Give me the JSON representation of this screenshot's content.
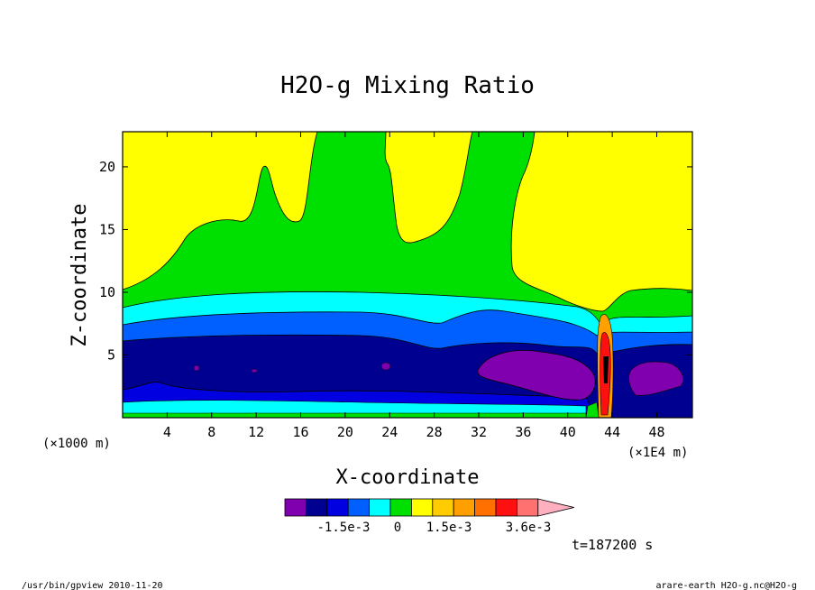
{
  "chart_data": {
    "type": "heatmap",
    "title": "H2O-g Mixing Ratio",
    "xlabel": "X-coordinate",
    "ylabel": "Z-coordinate",
    "x_units": "(×1000 m)",
    "x_scale_note": "(×1E4 m)",
    "xlim": [
      0,
      51.2
    ],
    "ylim": [
      0,
      22.8
    ],
    "x_ticks": [
      4,
      8,
      12,
      16,
      20,
      24,
      28,
      32,
      36,
      40,
      44,
      48
    ],
    "y_ticks": [
      5,
      10,
      15,
      20
    ],
    "colorbar": {
      "colors": [
        "#8000b0",
        "#000090",
        "#0000e0",
        "#0060ff",
        "#00ffff",
        "#00e000",
        "#ffff00",
        "#ffcc00",
        "#ffa000",
        "#ff7000",
        "#ff1010",
        "#ff7070",
        "#ffb0c0"
      ],
      "labels": [
        "-1.5e-3",
        "0",
        "1.5e-3",
        "3.6e-3"
      ],
      "extend": "max"
    },
    "time_label": "t=187200 s",
    "regions": [
      {
        "level": "positive (~0 to 1e-3)",
        "color": "#ffff00",
        "where": "upper atmosphere, z > ~10 on left, > ~7 on right"
      },
      {
        "level": "~-2e-4 to 0",
        "color": "#00e000",
        "where": "plumes rising from x~8-36 to top; thin band above blue layers"
      },
      {
        "level": "~-5e-4",
        "color": "#00ffff",
        "where": "band z ~7.5-9"
      },
      {
        "level": "~-1e-3",
        "color": "#0060ff",
        "where": "band z ~6-8"
      },
      {
        "level": "~-1.5e-3",
        "color": "#000090",
        "where": "layer z ~1.5-6"
      },
      {
        "level": "< -2e-3",
        "color": "#8000b0",
        "where": "patch x ~32-43, z ~2-5"
      },
      {
        "level": "> 2e-3",
        "color": "#ff1010",
        "where": "narrow column x ~43, z 0-8"
      }
    ]
  },
  "footer": {
    "left": "/usr/bin/gpview   2010-11-20",
    "right": "arare-earth_H2O-g.nc@H2O-g"
  }
}
